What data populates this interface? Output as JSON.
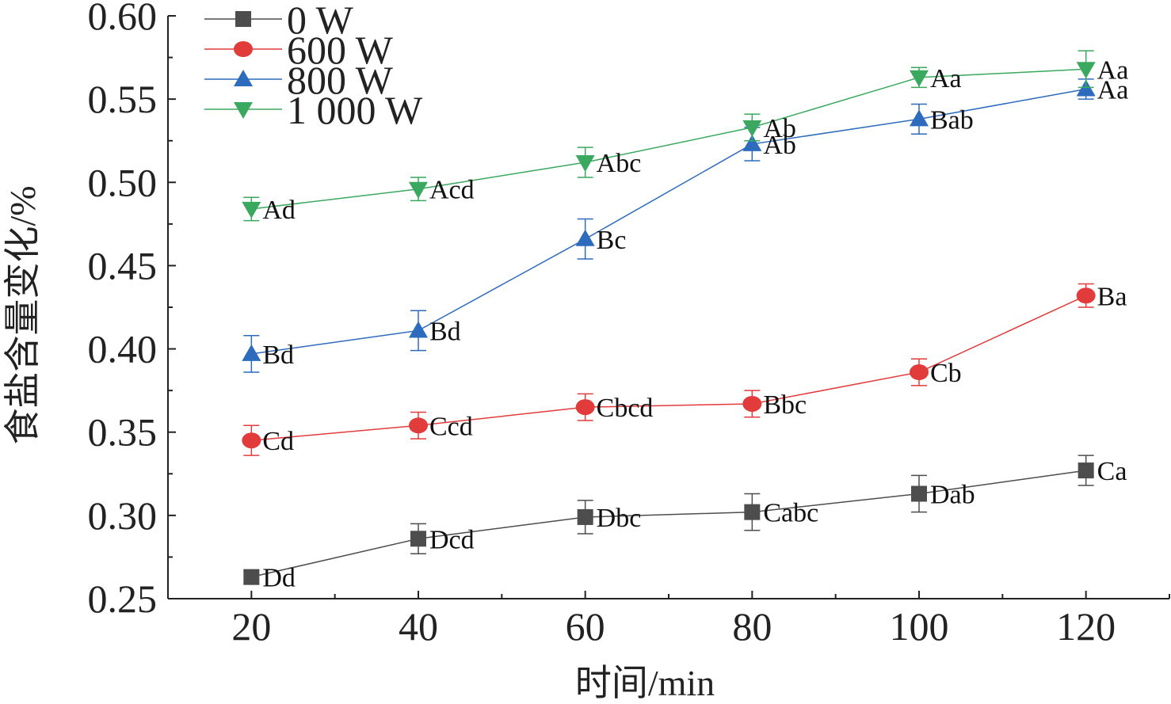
{
  "chart_data": {
    "type": "line",
    "xlabel": "时间/min",
    "ylabel": "食盐含量变化/%",
    "xlim": [
      10,
      130
    ],
    "ylim": [
      0.25,
      0.6
    ],
    "x_ticks": [
      20,
      40,
      60,
      80,
      100,
      120
    ],
    "y_ticks": [
      0.25,
      0.3,
      0.35,
      0.4,
      0.45,
      0.5,
      0.55,
      0.6
    ],
    "legend_position": "top-left",
    "grid": false,
    "x": [
      20,
      40,
      60,
      80,
      100,
      120
    ],
    "series": [
      {
        "name": "0 W",
        "color": "#4d4d4d",
        "marker": "square",
        "values": [
          0.263,
          0.286,
          0.299,
          0.302,
          0.313,
          0.327
        ],
        "errors": [
          0.004,
          0.009,
          0.01,
          0.011,
          0.011,
          0.009
        ],
        "labels": [
          "Dd",
          "Dcd",
          "Dbc",
          "Cabc",
          "Dab",
          "Ca"
        ]
      },
      {
        "name": "600 W",
        "color": "#e23b3b",
        "marker": "circle",
        "values": [
          0.345,
          0.354,
          0.365,
          0.367,
          0.386,
          0.432
        ],
        "errors": [
          0.009,
          0.008,
          0.008,
          0.008,
          0.008,
          0.007
        ],
        "labels": [
          "Cd",
          "Ccd",
          "Cbcd",
          "Bbc",
          "Cb",
          "Ba"
        ]
      },
      {
        "name": "800 W",
        "color": "#2d6bbd",
        "marker": "triangle-up",
        "values": [
          0.397,
          0.411,
          0.466,
          0.523,
          0.538,
          0.556
        ],
        "errors": [
          0.011,
          0.012,
          0.012,
          0.01,
          0.009,
          0.006
        ],
        "labels": [
          "Bd",
          "Bd",
          "Bc",
          "Ab",
          "Bab",
          "Aa"
        ]
      },
      {
        "name": "1 000 W",
        "color": "#3aa85e",
        "marker": "triangle-down",
        "values": [
          0.484,
          0.496,
          0.512,
          0.533,
          0.563,
          0.568
        ],
        "errors": [
          0.007,
          0.007,
          0.009,
          0.008,
          0.006,
          0.011
        ],
        "labels": [
          "Ad",
          "Acd",
          "Abc",
          "Ab",
          "Aa",
          "Aa"
        ]
      }
    ]
  }
}
